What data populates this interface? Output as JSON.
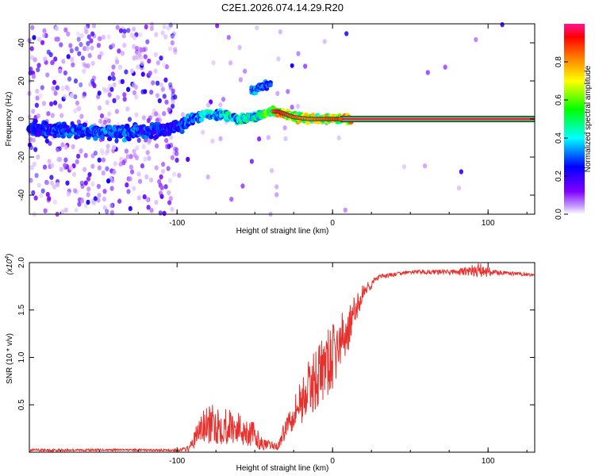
{
  "figure_title": "C2E1.2026.074.14.29.R20",
  "chart_data": [
    {
      "type": "heatmap",
      "title": "C2E1.2026.074.14.29.R20",
      "xlabel": "Height of straight line (km)",
      "ylabel": "Frequency (Hz)",
      "xlim": [
        -195,
        130
      ],
      "ylim": [
        -50,
        50
      ],
      "x_ticks": [
        -100,
        0,
        100
      ],
      "x_tick_labels": [
        "-100",
        "0",
        "100"
      ],
      "y_ticks": [
        -40,
        -20,
        0,
        20,
        40
      ],
      "y_tick_labels": [
        "-40",
        "-20",
        "0",
        "20",
        "40"
      ],
      "colorbar": {
        "label": "Normalized spectral amplitude",
        "range": [
          0,
          1
        ],
        "ticks": [
          0.0,
          0.2,
          0.4,
          0.6,
          0.8
        ],
        "tick_labels": [
          "0.0",
          "0.2",
          "0.4",
          "0.6",
          "0.8"
        ],
        "colormap": [
          "#ffffff",
          "#8000ff",
          "#0000ff",
          "#00ffff",
          "#00ff00",
          "#ffff00",
          "#ff8000",
          "#ff0000",
          "#ff0080"
        ]
      },
      "ridge": {
        "x": [
          -195,
          -170,
          -150,
          -130,
          -110,
          -100,
          -90,
          -80,
          -70,
          -60,
          -50,
          -40,
          -35,
          -25,
          -15,
          -5,
          5,
          130
        ],
        "freq": [
          -5,
          -6,
          -7,
          -7,
          -6,
          -4,
          0,
          3,
          2,
          0,
          1,
          4,
          4,
          1,
          0,
          0,
          0,
          0
        ],
        "amplitude": [
          0.3,
          0.35,
          0.35,
          0.35,
          0.3,
          0.3,
          0.4,
          0.45,
          0.45,
          0.45,
          0.5,
          0.65,
          0.85,
          0.75,
          0.7,
          0.75,
          0.8,
          0.95
        ]
      },
      "secondary_feature": {
        "x": [
          -52,
          -45,
          -40
        ],
        "freq": [
          15,
          17,
          19
        ],
        "amplitude": 0.3
      }
    },
    {
      "type": "line",
      "xlabel": "Height of straight line (km)",
      "ylabel": "SNR (10 * v/v)",
      "y_scale_label": "(x10",
      "y_scale_exponent": "4",
      "xlim": [
        -195,
        130
      ],
      "ylim": [
        0,
        20000
      ],
      "x_ticks": [
        -100,
        0,
        100
      ],
      "x_tick_labels": [
        "-100",
        "0",
        "100"
      ],
      "y_ticks": [
        5000,
        10000,
        15000,
        20000
      ],
      "y_tick_labels": [
        "0.5",
        "1.0",
        "1.5",
        "2.0"
      ],
      "series_color": "#e8312d",
      "envelope": {
        "x": [
          -195,
          -140,
          -100,
          -92,
          -85,
          -75,
          -62,
          -52,
          -45,
          -35,
          -28,
          -20,
          -10,
          0,
          10,
          20,
          30,
          50,
          80,
          95,
          102,
          110,
          130
        ],
        "mean": [
          200,
          250,
          200,
          400,
          2500,
          3000,
          2600,
          2000,
          800,
          600,
          3500,
          5500,
          8000,
          10000,
          13000,
          17000,
          18500,
          19000,
          19000,
          19200,
          19000,
          18900,
          18700
        ],
        "noise": [
          150,
          100,
          100,
          300,
          1800,
          2200,
          1800,
          1500,
          600,
          400,
          1500,
          2500,
          3500,
          3500,
          2500,
          800,
          250,
          200,
          300,
          800,
          500,
          200,
          150
        ]
      }
    }
  ]
}
